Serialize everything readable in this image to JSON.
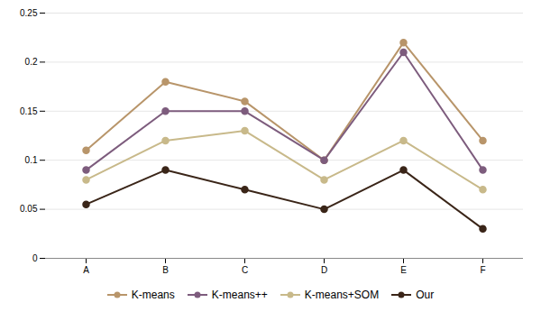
{
  "chart_data": {
    "type": "line",
    "categories": [
      "A",
      "B",
      "C",
      "D",
      "E",
      "F"
    ],
    "series": [
      {
        "name": "K-means",
        "color": "#b8956a",
        "marker": "circle",
        "values": [
          0.11,
          0.18,
          0.16,
          0.1,
          0.22,
          0.12
        ]
      },
      {
        "name": "K-means++",
        "color": "#7d5c7d",
        "marker": "circle",
        "values": [
          0.09,
          0.15,
          0.15,
          0.1,
          0.21,
          0.09
        ]
      },
      {
        "name": "K-means+SOM",
        "color": "#c8b98a",
        "marker": "circle",
        "values": [
          0.08,
          0.12,
          0.13,
          0.08,
          0.12,
          0.07
        ]
      },
      {
        "name": "Our",
        "color": "#3a2518",
        "marker": "circle",
        "values": [
          0.055,
          0.09,
          0.07,
          0.05,
          0.09,
          0.03
        ]
      }
    ],
    "ylim": [
      0,
      0.25
    ],
    "yticks": [
      0,
      0.05,
      0.1,
      0.15,
      0.2,
      0.25
    ],
    "grid": true,
    "legend": "bottom"
  }
}
